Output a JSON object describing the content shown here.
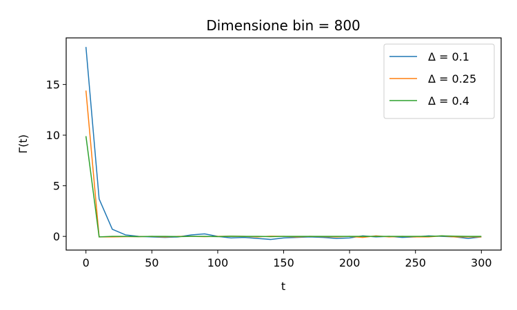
{
  "chart_data": {
    "type": "line",
    "title": "Dimensione bin = 800",
    "xlabel": "t",
    "ylabel": "Γ(t)",
    "xlim": [
      -15,
      315
    ],
    "ylim": [
      -1.35,
      19.6
    ],
    "xticks": [
      0,
      50,
      100,
      150,
      200,
      250,
      300
    ],
    "xtick_labels": [
      "0",
      "50",
      "100",
      "150",
      "200",
      "250",
      "300"
    ],
    "yticks": [
      0,
      5,
      10,
      15
    ],
    "ytick_labels": [
      "0",
      "5",
      "10",
      "15"
    ],
    "grid": false,
    "legend_position": "top-right",
    "x": [
      0,
      10,
      20,
      30,
      40,
      50,
      60,
      70,
      80,
      90,
      100,
      110,
      120,
      130,
      140,
      150,
      160,
      170,
      180,
      190,
      200,
      210,
      220,
      230,
      240,
      250,
      260,
      270,
      280,
      290,
      300
    ],
    "series": [
      {
        "name": "Δ = 0.1",
        "color": "#1f77b4",
        "values": [
          18.7,
          3.7,
          0.7,
          0.15,
          0.0,
          -0.05,
          -0.1,
          -0.05,
          0.15,
          0.25,
          0.0,
          -0.15,
          -0.1,
          -0.2,
          -0.3,
          -0.15,
          -0.1,
          -0.05,
          -0.1,
          -0.2,
          -0.15,
          0.05,
          -0.05,
          0.0,
          -0.1,
          -0.05,
          0.05,
          0.0,
          -0.05,
          -0.2,
          -0.05
        ]
      },
      {
        "name": "Δ = 0.25",
        "color": "#ff7f0e",
        "values": [
          14.4,
          -0.05,
          -0.05,
          -0.02,
          -0.02,
          0.0,
          -0.05,
          0.0,
          0.0,
          -0.02,
          0.0,
          0.02,
          0.0,
          -0.05,
          0.02,
          0.0,
          -0.05,
          0.0,
          -0.02,
          -0.05,
          0.0,
          -0.1,
          0.05,
          -0.05,
          0.0,
          -0.05,
          -0.05,
          0.05,
          -0.05,
          -0.05,
          -0.05
        ]
      },
      {
        "name": "Δ = 0.4",
        "color": "#2ca02c",
        "values": [
          9.9,
          -0.05,
          0.0,
          0.0,
          -0.02,
          0.0,
          0.0,
          -0.02,
          0.0,
          0.0,
          -0.02,
          0.02,
          0.0,
          0.0,
          -0.02,
          0.0,
          0.0,
          0.0,
          0.0,
          0.0,
          0.0,
          0.0,
          0.0,
          0.0,
          0.0,
          0.0,
          0.0,
          0.05,
          0.02,
          0.0,
          0.0
        ]
      }
    ]
  }
}
